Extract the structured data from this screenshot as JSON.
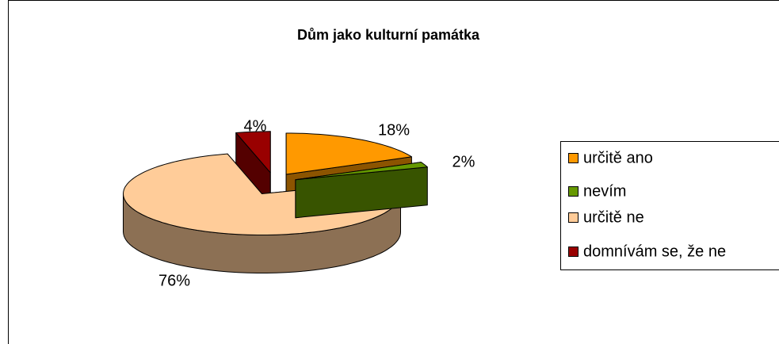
{
  "chart_data": {
    "type": "pie",
    "title": "Dům jako kulturní památka",
    "categories": [
      "určitě ano",
      "nevím",
      "určitě ne",
      "domnívám se, že ne"
    ],
    "values": [
      18,
      2,
      76,
      4
    ],
    "value_labels": [
      "18%",
      "2%",
      "76%",
      "4%"
    ],
    "colors": [
      "#ff9900",
      "#669900",
      "#ffcc99",
      "#990000"
    ],
    "legend": "right"
  }
}
